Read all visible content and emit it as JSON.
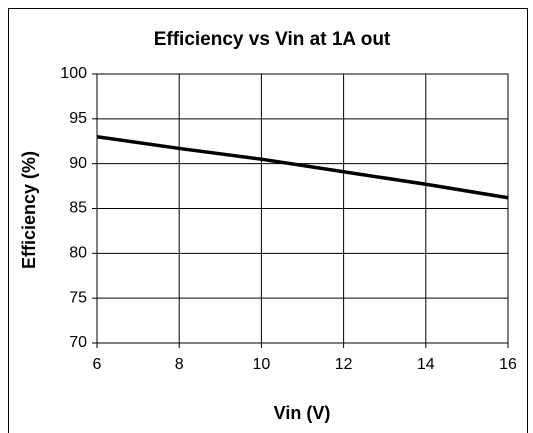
{
  "chart_data": {
    "type": "line",
    "title": "Efficiency vs Vin at 1A out",
    "x_label": "Vin (V)",
    "y_label": "Efficiency (%)",
    "x": [
      6,
      8,
      10,
      12,
      14,
      16
    ],
    "series": [
      {
        "name": "Efficiency",
        "color": "#000000",
        "values": [
          93.0,
          91.7,
          90.5,
          89.1,
          87.7,
          86.2
        ]
      }
    ],
    "xlim": [
      6,
      16
    ],
    "xticks": [
      6,
      8,
      10,
      12,
      14,
      16
    ],
    "ylim": [
      70,
      100
    ],
    "yticks": [
      70,
      75,
      80,
      85,
      90,
      95,
      100
    ],
    "grid": true
  }
}
